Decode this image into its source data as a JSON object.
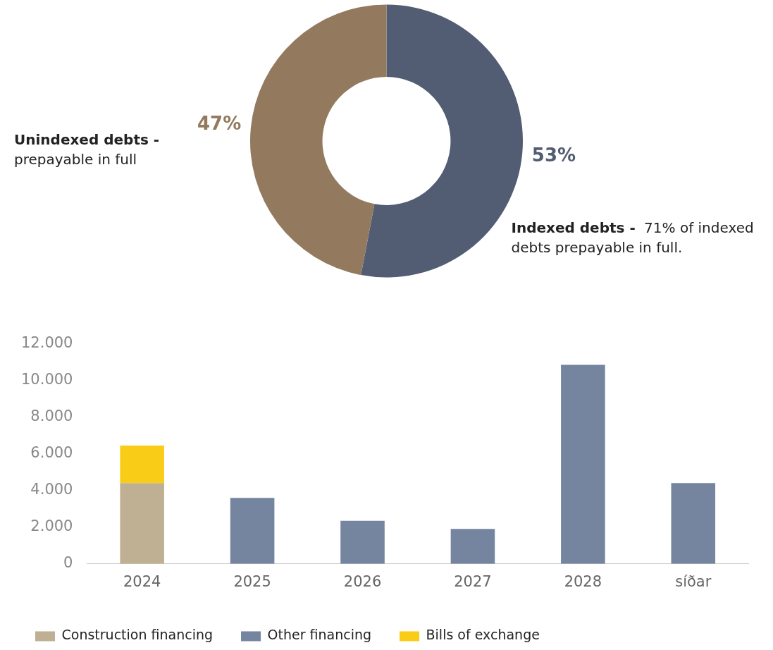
{
  "chart_data": [
    {
      "type": "donut",
      "categories": [
        "Indexed debts -",
        "Unindexed debts -"
      ],
      "values": [
        53,
        47
      ],
      "colors": [
        "#525c72",
        "#937a5e"
      ],
      "value_labels": [
        "53%",
        "47%"
      ],
      "annotations": [
        "71% of indexed debts prepayable in full.",
        "prepayable in full"
      ],
      "legend": false
    },
    {
      "type": "bar",
      "categories": [
        "2024",
        "2025",
        "2026",
        "2027",
        "2028",
        "síðar"
      ],
      "stacked": true,
      "series": [
        {
          "name": "Construction financing",
          "color": "#bfb093",
          "values": [
            4400,
            null,
            null,
            null,
            null,
            null
          ]
        },
        {
          "name": "Other financing",
          "color": "#7585a0",
          "values": [
            null,
            3600,
            2350,
            1900,
            10850,
            4400
          ]
        },
        {
          "name": "Bills of exchange",
          "color": "#f9cd17",
          "values": [
            2050,
            null,
            null,
            null,
            null,
            null
          ]
        }
      ],
      "ylim": [
        0,
        12000
      ],
      "yticks": [
        {
          "value": 0,
          "label": "0"
        },
        {
          "value": 2000,
          "label": "2.000"
        },
        {
          "value": 4000,
          "label": "4.000"
        },
        {
          "value": 6000,
          "label": "6.000"
        },
        {
          "value": 8000,
          "label": "8.000"
        },
        {
          "value": 10000,
          "label": "10.000"
        },
        {
          "value": 12000,
          "label": "12.000"
        }
      ],
      "grid": false,
      "legend": "bottom"
    }
  ]
}
